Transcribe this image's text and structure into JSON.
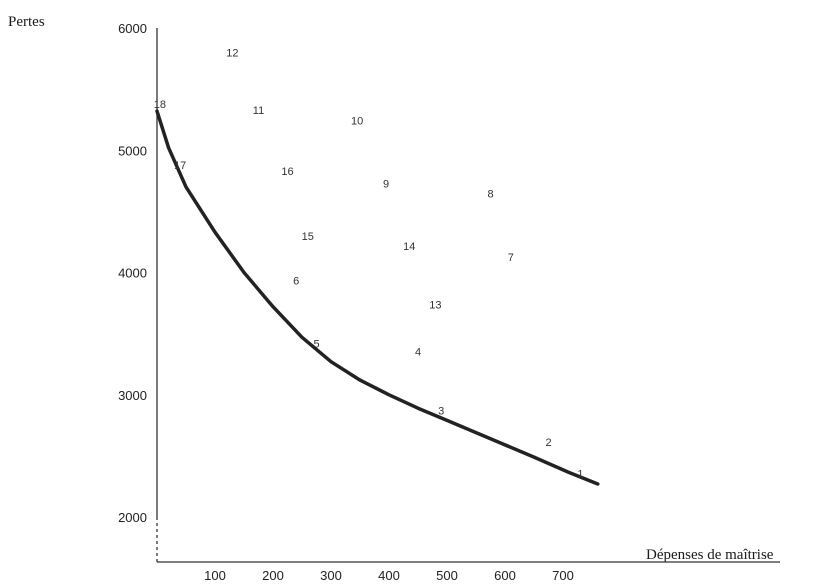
{
  "chart_data": {
    "type": "scatter",
    "title": "",
    "xlabel": "Dépenses de maîtrise",
    "ylabel": "Pertes",
    "xlim": [
      0,
      770
    ],
    "ylim": [
      1700,
      6050
    ],
    "x_ticks": [
      100,
      200,
      300,
      400,
      500,
      600,
      700
    ],
    "y_ticks": [
      2000,
      3000,
      4000,
      5000,
      6000
    ],
    "grid": false,
    "colors": {
      "curve": "#222222",
      "axis": "#333333",
      "text": "#333333"
    },
    "points": [
      {
        "label": "1",
        "x": 730,
        "y": 2355
      },
      {
        "label": "2",
        "x": 675,
        "y": 2615
      },
      {
        "label": "3",
        "x": 490,
        "y": 2870
      },
      {
        "label": "4",
        "x": 450,
        "y": 3355
      },
      {
        "label": "5",
        "x": 275,
        "y": 3420
      },
      {
        "label": "6",
        "x": 240,
        "y": 3935
      },
      {
        "label": "7",
        "x": 610,
        "y": 4125
      },
      {
        "label": "8",
        "x": 575,
        "y": 4645
      },
      {
        "label": "9",
        "x": 395,
        "y": 4730
      },
      {
        "label": "10",
        "x": 345,
        "y": 5245
      },
      {
        "label": "11",
        "x": 175,
        "y": 5330
      },
      {
        "label": "12",
        "x": 130,
        "y": 5800
      },
      {
        "label": "13",
        "x": 480,
        "y": 3740
      },
      {
        "label": "14",
        "x": 435,
        "y": 4215
      },
      {
        "label": "15",
        "x": 260,
        "y": 4300
      },
      {
        "label": "16",
        "x": 225,
        "y": 4830
      },
      {
        "label": "17",
        "x": 40,
        "y": 4880
      },
      {
        "label": "18",
        "x": 5,
        "y": 5380
      }
    ],
    "curve": [
      {
        "x": 0,
        "y": 5320
      },
      {
        "x": 20,
        "y": 5020
      },
      {
        "x": 50,
        "y": 4700
      },
      {
        "x": 100,
        "y": 4330
      },
      {
        "x": 150,
        "y": 4000
      },
      {
        "x": 200,
        "y": 3720
      },
      {
        "x": 250,
        "y": 3470
      },
      {
        "x": 300,
        "y": 3270
      },
      {
        "x": 350,
        "y": 3120
      },
      {
        "x": 400,
        "y": 3000
      },
      {
        "x": 450,
        "y": 2890
      },
      {
        "x": 500,
        "y": 2790
      },
      {
        "x": 550,
        "y": 2690
      },
      {
        "x": 600,
        "y": 2590
      },
      {
        "x": 650,
        "y": 2490
      },
      {
        "x": 710,
        "y": 2365
      },
      {
        "x": 760,
        "y": 2270
      }
    ]
  }
}
